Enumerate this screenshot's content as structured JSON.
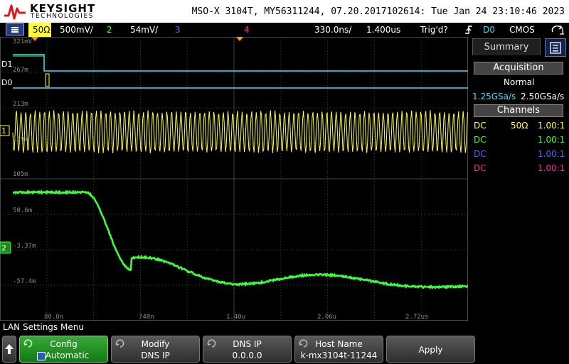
{
  "header": {
    "brand": "KEYSIGHT",
    "brand_sub": "TECHNOLOGIES",
    "info": "MSO-X 3104T, MY56311244, 07.20.2017102614: Tue Jan 24 23:10:46 2023"
  },
  "channel_bar": {
    "ch1_impedance": "50Ω",
    "ch1_scale": "500mV/",
    "ch2_num": "2",
    "ch2_scale": "54mV/",
    "ch3_num": "3",
    "ch4_num": "4",
    "time_scale": "330.0ns/",
    "time_delay": "1.400us",
    "trigger_status": "Trig'd?",
    "trigger_source": "D0",
    "trigger_level": "CMOS"
  },
  "colors": {
    "ch1": "#ffff3c",
    "ch2": "#3cff3c",
    "ch3": "#4a6dff",
    "ch4": "#ff2c9c",
    "digital": "#3ce0ff",
    "grid": "#5a5a5a"
  },
  "digital_labels": [
    "D1",
    "D0"
  ],
  "markers": {
    "ch1": "1",
    "ch2": "2"
  },
  "y_labels": [
    "321mV",
    "267m",
    "213m",
    "159m",
    "105m",
    "50.6m",
    "-3.37m",
    "-57.4m"
  ],
  "x_labels": [
    "80.0n",
    "740n",
    "1.40u",
    "2.06u",
    "2.72us"
  ],
  "right_panel": {
    "tab_summary": "Summary",
    "acquisition_title": "Acquisition",
    "acquisition_mode": "Normal",
    "sample_rate_1": "1.25GSa/s",
    "sample_rate_2": "2.50GSa/s",
    "channels_title": "Channels",
    "channels": [
      {
        "coupling": "DC",
        "impedance": "50Ω",
        "probe": "1.00:1"
      },
      {
        "coupling": "DC",
        "impedance": "",
        "probe": "1.00:1"
      },
      {
        "coupling": "DC",
        "impedance": "",
        "probe": "1.00:1"
      },
      {
        "coupling": "DC",
        "impedance": "",
        "probe": "1.00:1"
      }
    ]
  },
  "menu_title": "LAN Settings Menu",
  "softkeys": [
    {
      "line1": "Config",
      "line2": "Automatic"
    },
    {
      "line1": "Modify",
      "line2": "DNS IP"
    },
    {
      "line1": "DNS IP",
      "line2": "0.0.0.0"
    },
    {
      "line1": "Host Name",
      "line2": "k-mx3104t-11244"
    },
    {
      "line1": "Apply",
      "line2": ""
    }
  ]
}
